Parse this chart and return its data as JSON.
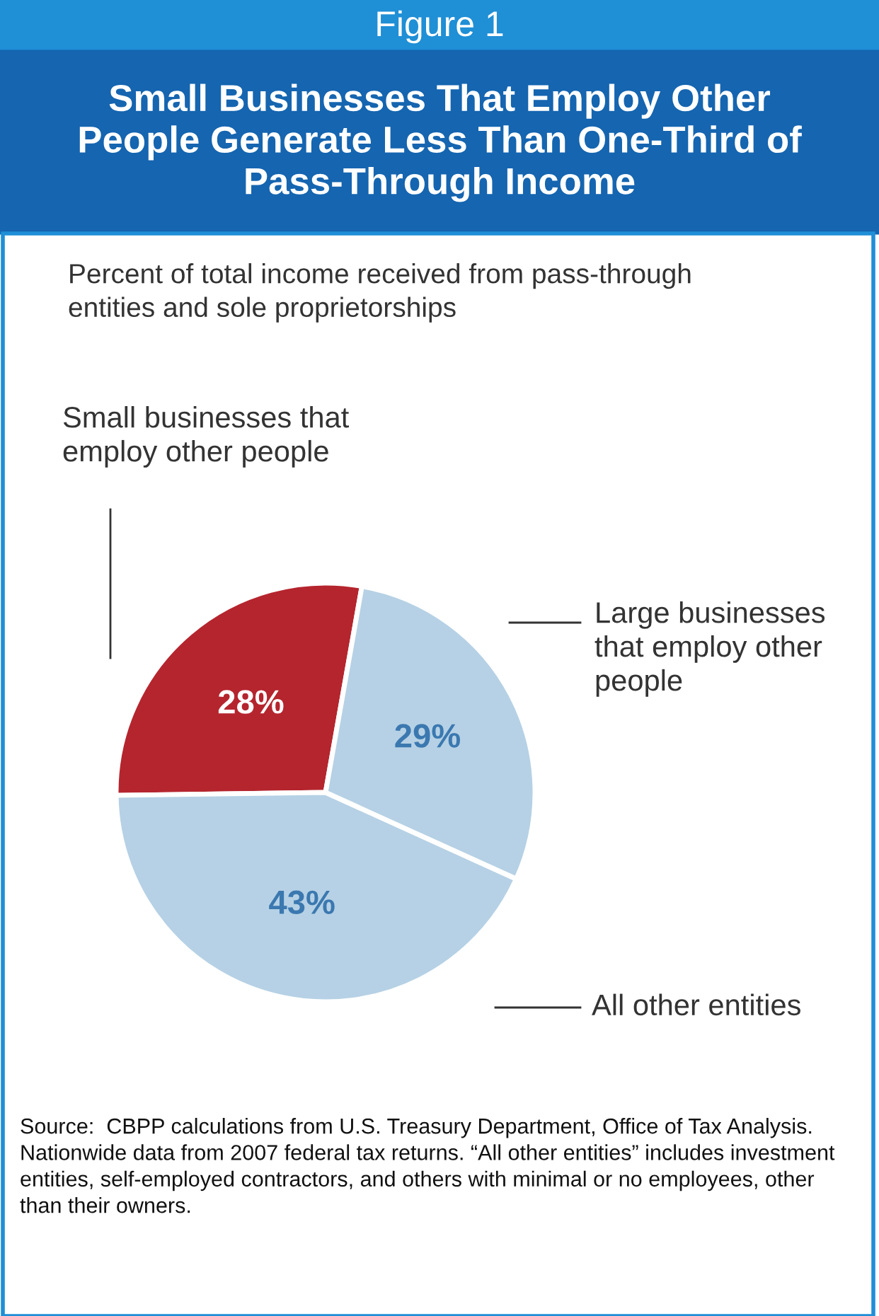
{
  "chart_data": {
    "type": "pie",
    "title": "Small Businesses That Employ Other People Generate Less Than One-Third of Pass-Through Income",
    "subtitle": "Percent of total income received from pass-through entities and sole proprietorships",
    "categories": [
      "Small businesses that employ other people",
      "All other entities",
      "Large businesses that employ other people"
    ],
    "values": [
      28,
      43,
      29
    ],
    "colors": [
      "#b5252e",
      "#b6d1e5",
      "#b6d1e5"
    ],
    "value_labels": [
      "28%",
      "43%",
      "29%"
    ],
    "annotations": [
      "Figure 1",
      "Source:  CBPP calculations from U.S. Treasury Department, Office of Tax Analysis.  Nationwide data from 2007 federal tax returns. “All other entities” includes investment entities, self-employed contractors, and others with minimal or no employees, other than their owners."
    ],
    "legend": false
  }
}
